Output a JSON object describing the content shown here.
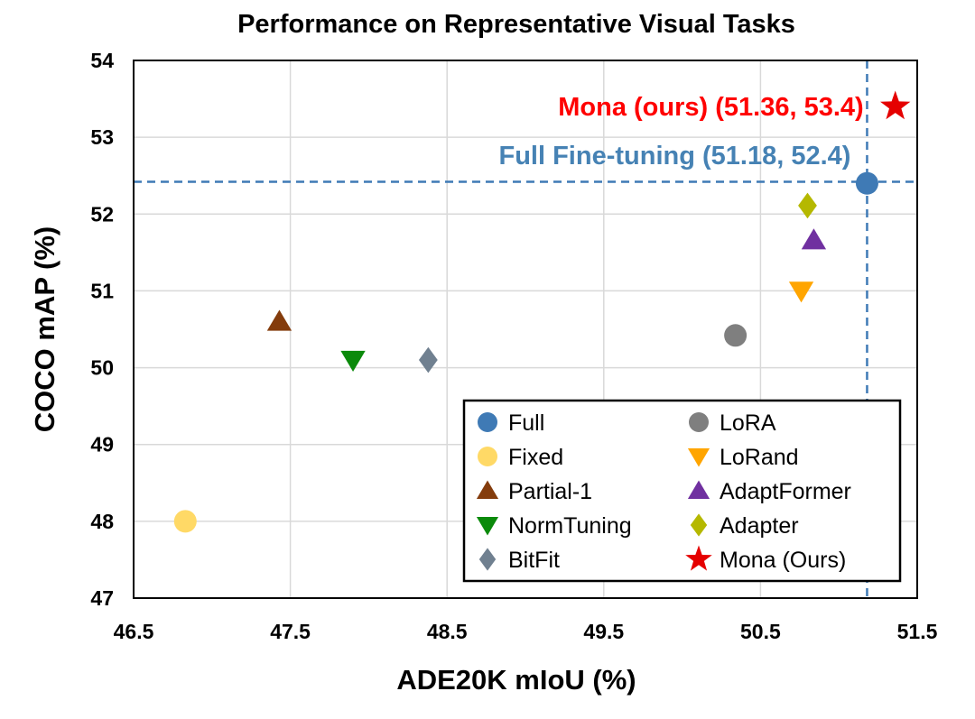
{
  "chart_data": {
    "type": "scatter",
    "title": "Performance on Representative Visual Tasks",
    "xlabel": "ADE20K mIoU (%)",
    "ylabel": "COCO mAP (%)",
    "xlim": [
      46.5,
      51.5
    ],
    "ylim": [
      47,
      54
    ],
    "xticks": [
      "46.5",
      "47.5",
      "48.5",
      "49.5",
      "50.5",
      "51.5"
    ],
    "yticks": [
      "47",
      "48",
      "49",
      "50",
      "51",
      "52",
      "53",
      "54"
    ],
    "grid": true,
    "legend_position": "bottom-right",
    "series": [
      {
        "name": "Full",
        "marker": "circle",
        "color": "#3f7ab5",
        "x": 51.18,
        "y": 52.4
      },
      {
        "name": "Fixed",
        "marker": "circle",
        "color": "#ffd966",
        "x": 46.83,
        "y": 48.0
      },
      {
        "name": "Partial-1",
        "marker": "triangle-up",
        "color": "#843c0c",
        "x": 47.43,
        "y": 50.6
      },
      {
        "name": "NormTuning",
        "marker": "triangle-down",
        "color": "#0b8a0b",
        "x": 47.9,
        "y": 50.1
      },
      {
        "name": "BitFit",
        "marker": "diamond",
        "color": "#708090",
        "x": 48.38,
        "y": 50.1
      },
      {
        "name": "LoRA",
        "marker": "circle",
        "color": "#7f7f7f",
        "x": 50.34,
        "y": 50.42
      },
      {
        "name": "LoRand",
        "marker": "triangle-down",
        "color": "#ffa500",
        "x": 50.76,
        "y": 51.0
      },
      {
        "name": "AdaptFormer",
        "marker": "triangle-up",
        "color": "#7030a0",
        "x": 50.84,
        "y": 51.66
      },
      {
        "name": "Adapter",
        "marker": "diamond",
        "color": "#b5b800",
        "x": 50.8,
        "y": 52.11
      },
      {
        "name": "Mona (Ours)",
        "marker": "star",
        "color": "#e50000",
        "x": 51.36,
        "y": 53.4
      }
    ],
    "reference_lines": {
      "x": 51.18,
      "y": 52.42,
      "color": "#3f7ab5",
      "style": "dashed"
    },
    "annotations": [
      {
        "text": "Mona (ours) (51.36, 53.4)",
        "color": "#ff0000",
        "x": 51.36,
        "y": 53.4
      },
      {
        "text": "Full Fine-tuning (51.18, 52.4)",
        "color": "#4682b4",
        "x": 51.18,
        "y": 52.4
      }
    ]
  }
}
